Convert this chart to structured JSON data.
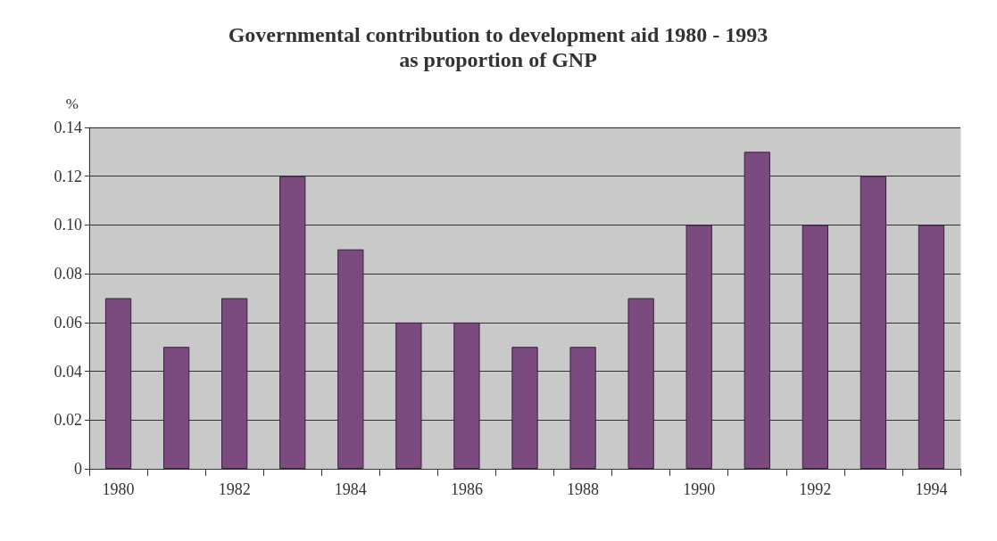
{
  "chart_data": {
    "type": "bar",
    "title": "Governmental contribution to development aid 1980 - 1993",
    "subtitle": "as proportion of GNP",
    "ylabel": "%",
    "categories": [
      "1980",
      null,
      "1982",
      null,
      "1984",
      null,
      "1986",
      null,
      "1988",
      null,
      "1990",
      null,
      "1992",
      null,
      "1994"
    ],
    "values": [
      0.07,
      0.05,
      0.07,
      0.12,
      0.09,
      0.06,
      0.06,
      0.05,
      0.05,
      0.07,
      0.1,
      0.13,
      0.1,
      0.12,
      0.1
    ],
    "color": "#7b4a7e",
    "ylim": [
      0,
      0.14
    ],
    "yticks": [
      0,
      0.02,
      0.04,
      0.06,
      0.08,
      {
        "value": 0.1,
        "label": "0.10"
      },
      0.12,
      0.14
    ],
    "grid": "y"
  }
}
